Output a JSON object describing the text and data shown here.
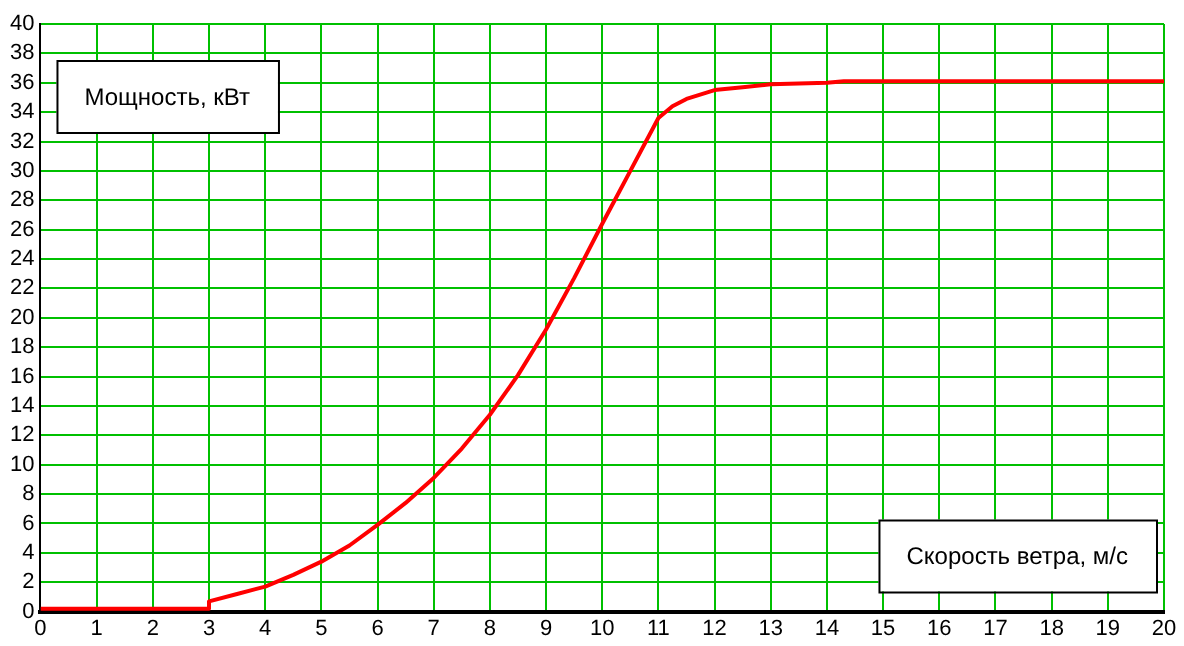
{
  "chart_data": {
    "type": "line",
    "xlabel": "Скорость ветра, м/с",
    "ylabel": "Мощность, кВт",
    "x": [
      0,
      1,
      2,
      2.99,
      3,
      3.5,
      4,
      4.5,
      5,
      5.5,
      6,
      6.5,
      7,
      7.5,
      8,
      8.5,
      9,
      9.5,
      10,
      10.5,
      11,
      11.25,
      11.5,
      12,
      12.5,
      13,
      14,
      14.3,
      15,
      16,
      17,
      18,
      19,
      20
    ],
    "series": [
      {
        "color": "#ff0000",
        "values": [
          0.2,
          0.2,
          0.2,
          0.2,
          0.7,
          1.2,
          1.7,
          2.5,
          3.4,
          4.5,
          5.9,
          7.4,
          9.1,
          11.1,
          13.4,
          16.1,
          19.2,
          22.7,
          26.4,
          30,
          33.6,
          34.4,
          34.9,
          35.5,
          35.7,
          35.9,
          36,
          36.1,
          36.1,
          36.1,
          36.1,
          36.1,
          36.1,
          36.1
        ]
      }
    ],
    "xlim": [
      0,
      20
    ],
    "xticks": [
      0,
      1,
      2,
      3,
      4,
      5,
      6,
      7,
      8,
      9,
      10,
      11,
      12,
      13,
      14,
      15,
      16,
      17,
      18,
      19,
      20
    ],
    "ylim": [
      0,
      40
    ],
    "yticks": [
      0,
      2,
      4,
      6,
      8,
      10,
      12,
      14,
      16,
      18,
      20,
      22,
      24,
      26,
      28,
      30,
      32,
      34,
      36,
      38,
      40
    ],
    "grid": true,
    "legend": false,
    "marker": "none",
    "line_style": "solid"
  }
}
